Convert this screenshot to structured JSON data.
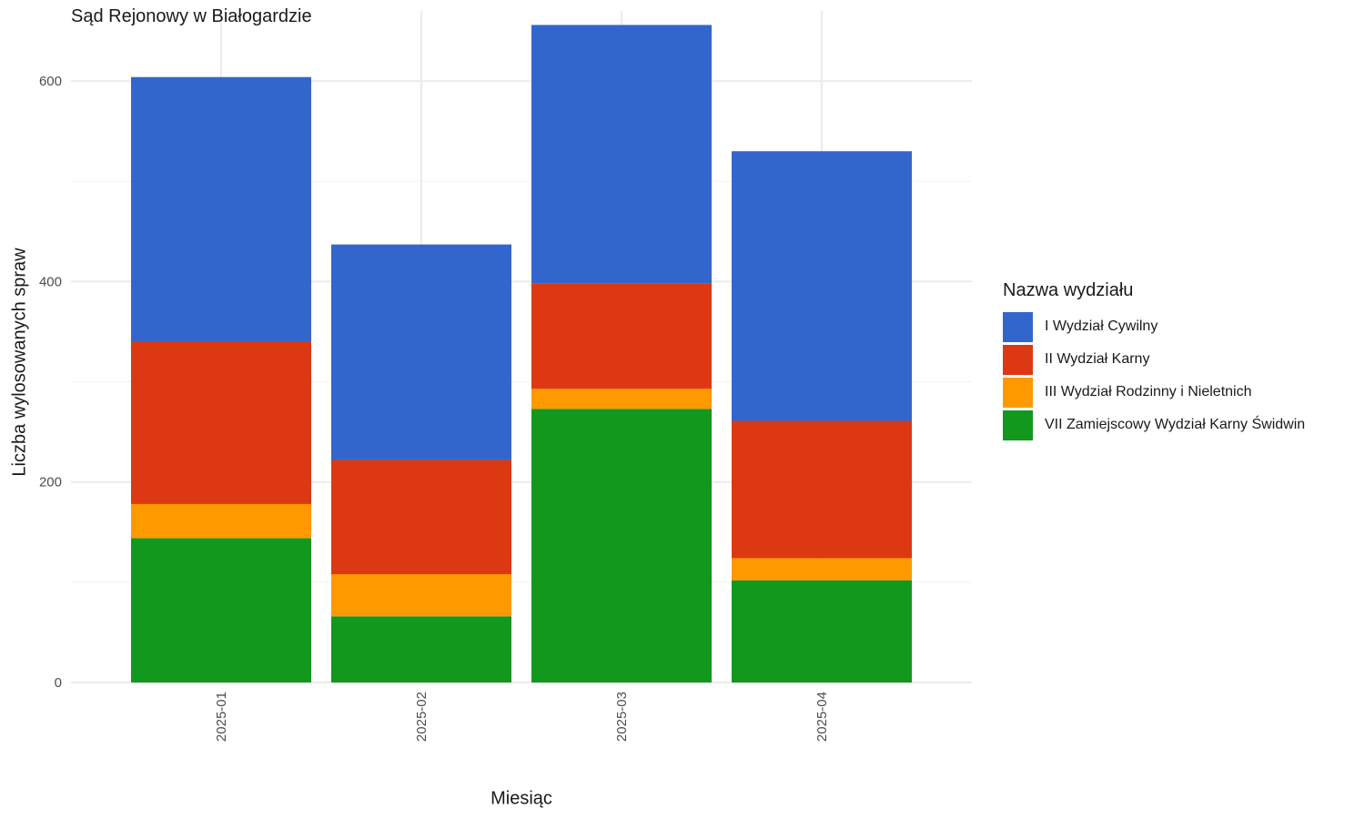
{
  "chart_data": {
    "type": "bar",
    "stacked": true,
    "title": "Sąd Rejonowy w Białogardzie",
    "xlabel": "Miesiąc",
    "ylabel": "Liczba wylosowanych spraw",
    "ylim": [
      0,
      670
    ],
    "yticks": [
      0,
      200,
      400,
      600
    ],
    "grid": true,
    "legend_position": "right",
    "legend_title": "Nazwa wydziału",
    "categories": [
      "2025-01",
      "2025-02",
      "2025-03",
      "2025-04"
    ],
    "series": [
      {
        "name": "VII Zamiejscowy Wydział Karny Świdwin",
        "color": "#11981D",
        "values": [
          144,
          66,
          273,
          102
        ]
      },
      {
        "name": "III Wydział Rodzinny i Nieletnich",
        "color": "#FF9900",
        "values": [
          34,
          42,
          20,
          22
        ]
      },
      {
        "name": "II Wydział Karny",
        "color": "#DC3912",
        "values": [
          162,
          114,
          105,
          137
        ]
      },
      {
        "name": "I Wydział Cywilny",
        "color": "#3366CC",
        "values": [
          264,
          215,
          258,
          269
        ]
      }
    ],
    "legend_order": [
      "I Wydział Cywilny",
      "II Wydział Karny",
      "III Wydział Rodzinny i Nieletnich",
      "VII Zamiejscowy Wydział Karny Świdwin"
    ]
  }
}
